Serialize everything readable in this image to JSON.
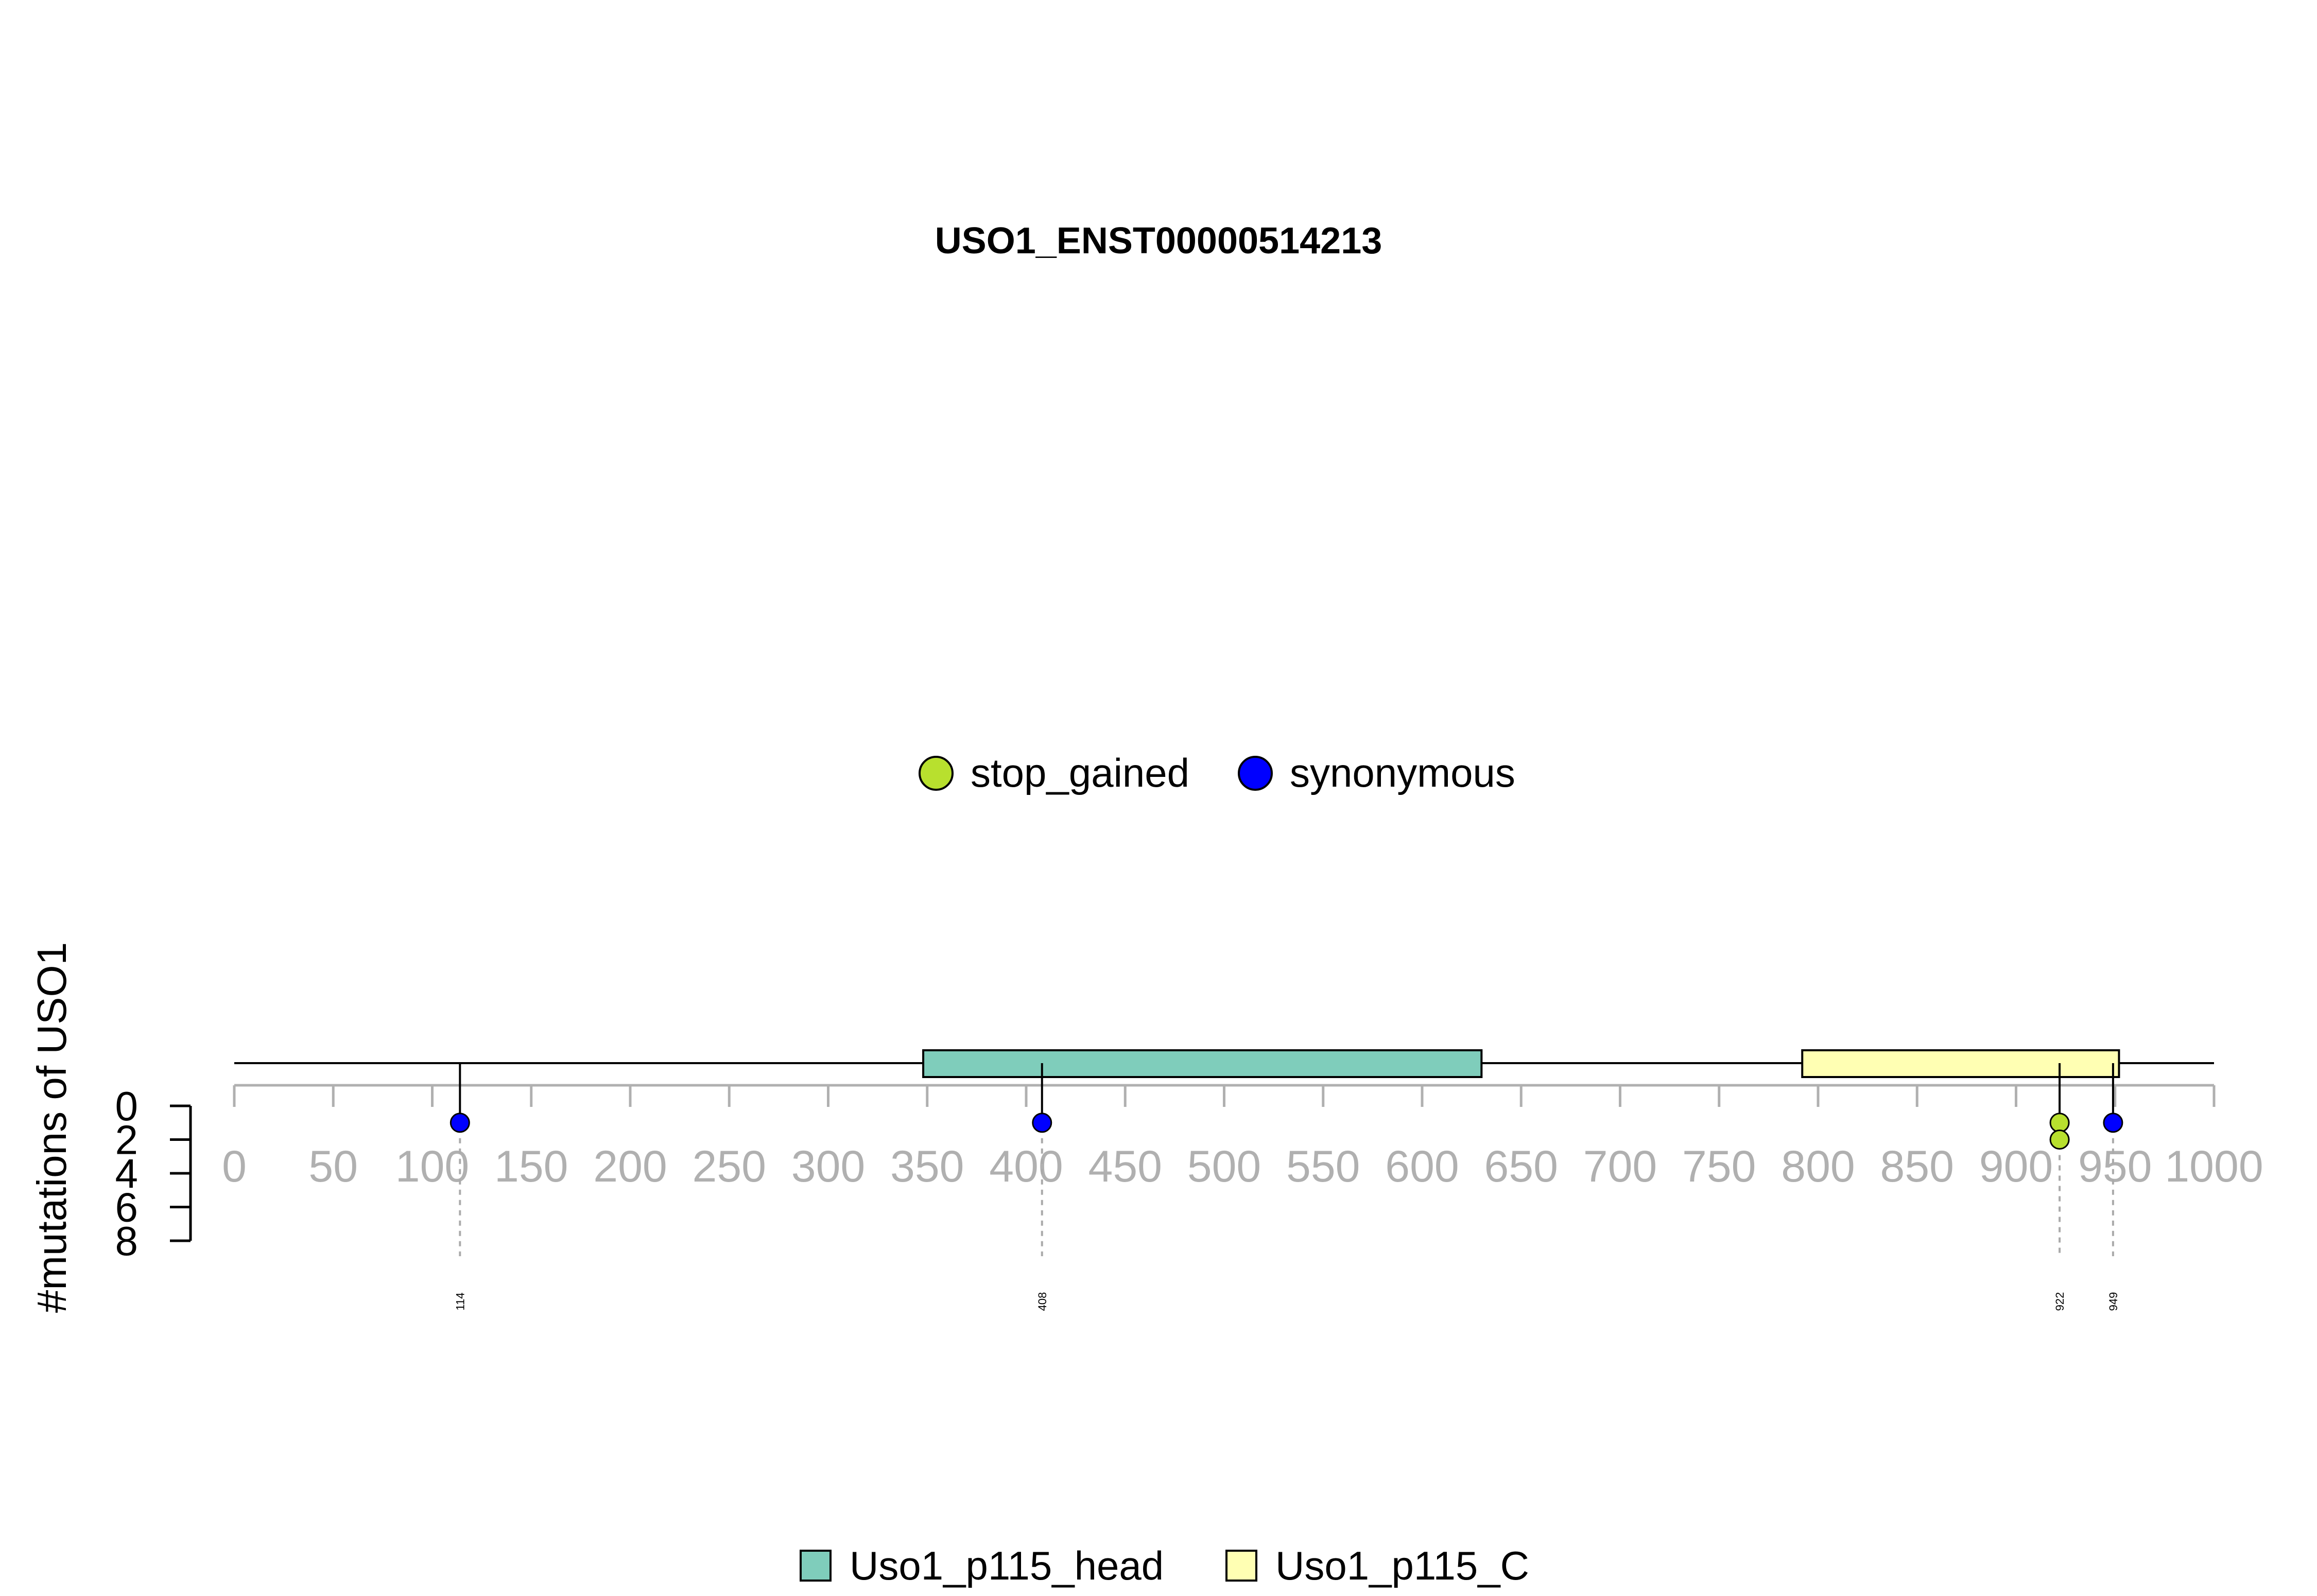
{
  "chart_data": {
    "type": "lollipop",
    "title": "USO1_ENST00000514213",
    "ylabel": "#mutations of USO1",
    "protein_length": 1000,
    "x_ticks": [
      0,
      50,
      100,
      150,
      200,
      250,
      300,
      350,
      400,
      450,
      500,
      550,
      600,
      650,
      700,
      750,
      800,
      850,
      900,
      950,
      1000
    ],
    "x_tick_labels": [
      "0",
      "50",
      "100",
      "150",
      "200",
      "250",
      "300",
      "350",
      "400",
      "450",
      "500",
      "550",
      "600",
      "650",
      "700",
      "750",
      "800",
      "850",
      "900",
      "950",
      "1000"
    ],
    "y_ticks": [
      0,
      2,
      4,
      6,
      8
    ],
    "y_tick_labels": [
      "0",
      "2",
      "4",
      "6",
      "8"
    ],
    "ylim": [
      0,
      8
    ],
    "domains": [
      {
        "name": "Uso1_p115_head",
        "start": 348,
        "end": 630,
        "color": "#7fcdbb"
      },
      {
        "name": "Uso1_p115_C",
        "start": 792,
        "end": 952,
        "color": "#ffffb3"
      }
    ],
    "mutation_classes": [
      {
        "name": "stop_gained",
        "color": "#b8e02e"
      },
      {
        "name": "synonymous",
        "color": "#0000ff"
      }
    ],
    "mutations": [
      {
        "position": 114,
        "label": "114",
        "points": [
          {
            "class": "synonymous",
            "count": 1
          }
        ]
      },
      {
        "position": 408,
        "label": "408",
        "points": [
          {
            "class": "synonymous",
            "count": 1
          }
        ]
      },
      {
        "position": 922,
        "label": "922",
        "points": [
          {
            "class": "stop_gained",
            "count": 1
          },
          {
            "class": "stop_gained",
            "count": 2
          }
        ]
      },
      {
        "position": 949,
        "label": "949",
        "points": [
          {
            "class": "synonymous",
            "count": 1
          }
        ]
      }
    ]
  }
}
